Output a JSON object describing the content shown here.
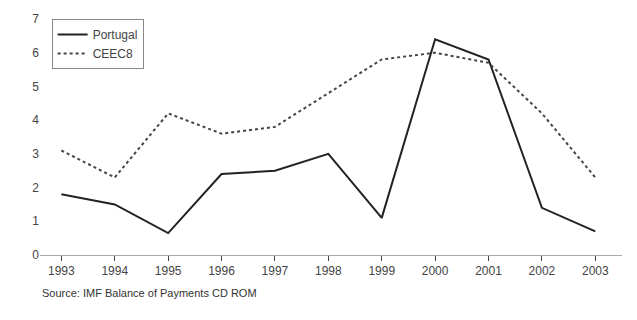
{
  "chart_data": {
    "type": "line",
    "x": [
      1993,
      1994,
      1995,
      1996,
      1997,
      1998,
      1999,
      2000,
      2001,
      2002,
      2003
    ],
    "series": [
      {
        "name": "Portugal",
        "color": "#222222",
        "line_style": "solid",
        "values": [
          1.8,
          1.5,
          0.65,
          2.4,
          2.5,
          3.0,
          1.1,
          6.4,
          5.8,
          1.4,
          0.7
        ]
      },
      {
        "name": "CEEC8",
        "color": "#444444",
        "line_style": "dotted",
        "values": [
          3.1,
          2.3,
          4.2,
          3.6,
          3.8,
          4.8,
          5.8,
          6.0,
          5.7,
          4.2,
          2.3
        ]
      }
    ],
    "xlim": [
      1992.6,
      2003.5
    ],
    "xticks": [
      1993,
      1994,
      1995,
      1996,
      1997,
      1998,
      1999,
      2000,
      2001,
      2002,
      2003
    ],
    "ylim": [
      0,
      7
    ],
    "yticks": [
      0,
      1,
      2,
      3,
      4,
      5,
      6,
      7
    ],
    "grid": false,
    "legend": "upper left",
    "annotations": [
      "Source: IMF Balance of Payments CD ROM"
    ]
  }
}
